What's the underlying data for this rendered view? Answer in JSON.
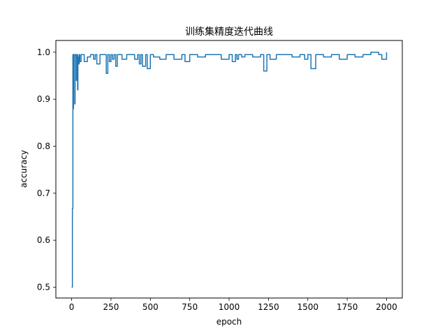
{
  "chart_data": {
    "type": "line",
    "title": "训练集精度迭代曲线",
    "xlabel": "epoch",
    "ylabel": "accuracy",
    "xlim": [
      -100,
      2100
    ],
    "ylim": [
      0.477,
      1.025
    ],
    "x_ticks": [
      0,
      250,
      500,
      750,
      1000,
      1250,
      1500,
      1750,
      2000
    ],
    "x_tick_labels": [
      "0",
      "250",
      "500",
      "750",
      "1000",
      "1250",
      "1500",
      "1750",
      "2000"
    ],
    "y_ticks": [
      0.5,
      0.6,
      0.7,
      0.8,
      0.9,
      1.0
    ],
    "y_tick_labels": [
      "0.5",
      "0.6",
      "0.7",
      "0.8",
      "0.9",
      "1.0"
    ],
    "grid": false,
    "series_color": "#1f77b4",
    "series": [
      {
        "x": [
          0,
          5,
          8,
          10,
          12,
          15,
          18,
          20,
          22,
          25,
          28,
          30,
          32,
          35,
          38,
          40,
          45,
          48,
          52,
          60,
          80,
          100,
          120,
          140,
          150,
          160,
          180,
          200,
          220,
          230,
          240,
          250,
          260,
          270,
          280,
          290,
          300,
          320,
          350,
          380,
          400,
          420,
          430,
          440,
          450,
          470,
          480,
          500,
          520,
          560,
          600,
          650,
          700,
          720,
          750,
          800,
          850,
          900,
          950,
          1000,
          1020,
          1040,
          1050,
          1060,
          1080,
          1100,
          1150,
          1200,
          1220,
          1240,
          1260,
          1300,
          1350,
          1400,
          1450,
          1480,
          1500,
          1520,
          1550,
          1600,
          1650,
          1700,
          1750,
          1800,
          1850,
          1900,
          1950,
          1970,
          2000
        ],
        "y": [
          0.5,
          0.667,
          0.995,
          0.88,
          0.995,
          0.995,
          0.995,
          0.89,
          0.995,
          0.995,
          0.995,
          0.94,
          0.995,
          0.995,
          0.92,
          0.99,
          0.975,
          0.995,
          0.98,
          0.995,
          0.98,
          0.99,
          0.995,
          0.985,
          0.995,
          0.975,
          0.995,
          0.995,
          0.955,
          0.995,
          0.98,
          0.995,
          0.985,
          0.995,
          0.97,
          0.995,
          0.995,
          0.985,
          0.995,
          0.995,
          0.985,
          0.995,
          0.975,
          0.995,
          0.97,
          0.995,
          0.965,
          0.995,
          0.99,
          0.985,
          0.995,
          0.985,
          0.995,
          0.98,
          0.995,
          0.99,
          0.995,
          0.995,
          0.985,
          0.995,
          0.98,
          0.995,
          0.985,
          0.995,
          0.99,
          0.995,
          0.99,
          0.995,
          0.96,
          0.995,
          0.985,
          0.995,
          0.995,
          0.99,
          0.995,
          0.985,
          0.995,
          0.965,
          0.995,
          0.99,
          0.995,
          0.985,
          0.995,
          0.99,
          0.995,
          1.0,
          0.995,
          0.985,
          1.0
        ]
      }
    ]
  }
}
